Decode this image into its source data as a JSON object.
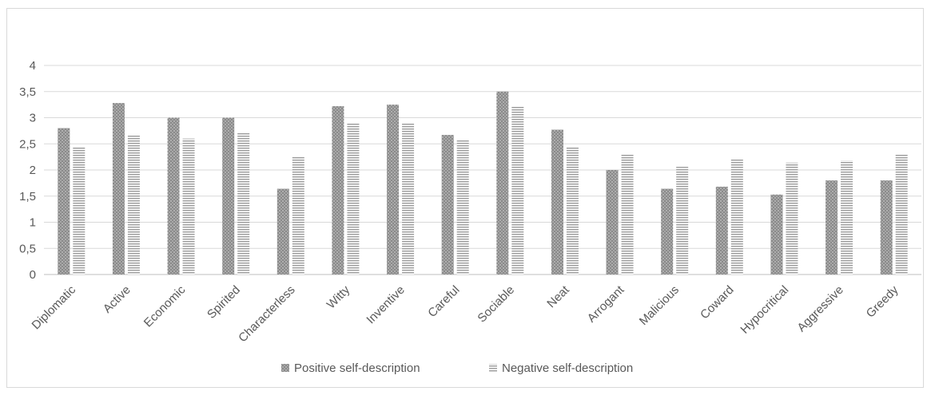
{
  "chart_data": {
    "type": "bar",
    "categories": [
      "Diplomatic",
      "Active",
      "Economic",
      "Spirited",
      "Characterless",
      "Witty",
      "Inventive",
      "Careful",
      "Sociable",
      "Neat",
      "Arrogant",
      "Malicious",
      "Coward",
      "Hypocritical",
      "Aggressive",
      "Greedy"
    ],
    "series": [
      {
        "name": "Positive self-description",
        "values": [
          2.8,
          3.28,
          3.0,
          3.0,
          1.64,
          3.22,
          3.25,
          2.67,
          3.5,
          2.77,
          2.0,
          1.64,
          1.68,
          1.53,
          1.8,
          1.8
        ],
        "color": "#8c8c8c",
        "pattern": "dotted"
      },
      {
        "name": "Negative self-description",
        "values": [
          2.45,
          2.68,
          2.6,
          2.72,
          2.25,
          2.9,
          2.9,
          2.57,
          3.22,
          2.45,
          2.3,
          2.06,
          2.22,
          2.14,
          2.18,
          2.3
        ],
        "color": "#a6a6a6",
        "pattern": "horizontal-stripes"
      }
    ],
    "yticks": [
      "0",
      "0,5",
      "1",
      "1,5",
      "2",
      "2,5",
      "3",
      "3,5",
      "4"
    ],
    "ylim": [
      0,
      4
    ],
    "grid": true,
    "legend_position": "bottom",
    "title": "",
    "xlabel": "",
    "ylabel": ""
  }
}
